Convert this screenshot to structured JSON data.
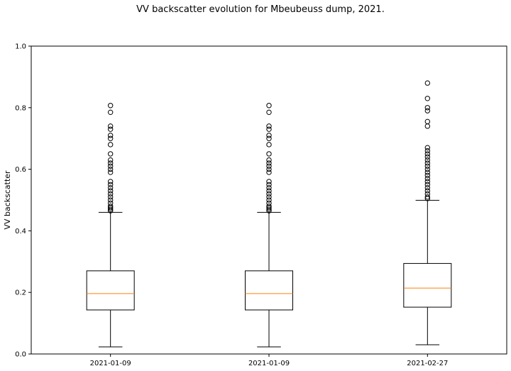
{
  "chart_data": {
    "type": "box",
    "title": "VV backscatter evolution for Mbeubeuss dump, 2021.",
    "xlabel": "",
    "ylabel": "VV backscatter",
    "ylim": [
      0,
      1.0
    ],
    "yticks": [
      0.0,
      0.2,
      0.4,
      0.6,
      0.8,
      1.0
    ],
    "ytick_labels": [
      "0.0",
      "0.2",
      "0.4",
      "0.6",
      "0.8",
      "1.0"
    ],
    "grid": false,
    "colors": {
      "box": "#000000",
      "median": "#ff7f0e"
    },
    "categories": [
      "2021-01-09",
      "2021-01-09",
      "2021-02-27"
    ],
    "boxes": [
      {
        "label": "2021-01-09",
        "whisker_low": 0.023,
        "q1": 0.143,
        "median": 0.196,
        "q3": 0.27,
        "whisker_high": 0.46,
        "outliers": [
          0.465,
          0.47,
          0.475,
          0.48,
          0.49,
          0.5,
          0.51,
          0.52,
          0.53,
          0.54,
          0.55,
          0.56,
          0.59,
          0.6,
          0.61,
          0.62,
          0.63,
          0.65,
          0.68,
          0.7,
          0.71,
          0.73,
          0.74,
          0.785,
          0.807
        ]
      },
      {
        "label": "2021-01-09",
        "whisker_low": 0.023,
        "q1": 0.143,
        "median": 0.196,
        "q3": 0.27,
        "whisker_high": 0.46,
        "outliers": [
          0.465,
          0.47,
          0.475,
          0.48,
          0.49,
          0.5,
          0.51,
          0.52,
          0.53,
          0.54,
          0.55,
          0.56,
          0.59,
          0.6,
          0.61,
          0.62,
          0.63,
          0.65,
          0.68,
          0.7,
          0.71,
          0.73,
          0.74,
          0.785,
          0.807
        ]
      },
      {
        "label": "2021-02-27",
        "whisker_low": 0.03,
        "q1": 0.152,
        "median": 0.214,
        "q3": 0.294,
        "whisker_high": 0.499,
        "outliers": [
          0.505,
          0.51,
          0.52,
          0.53,
          0.54,
          0.55,
          0.56,
          0.57,
          0.58,
          0.59,
          0.6,
          0.61,
          0.62,
          0.63,
          0.64,
          0.65,
          0.66,
          0.67,
          0.74,
          0.755,
          0.79,
          0.8,
          0.83,
          0.88
        ]
      }
    ]
  }
}
